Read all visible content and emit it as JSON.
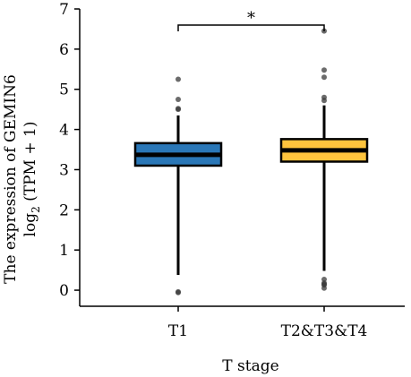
{
  "chart_data": {
    "type": "boxplot",
    "title": "",
    "xlabel": "T stage",
    "ylabel_line1": "The expression of GEMIN6",
    "ylabel_line2_main": "log",
    "ylabel_line2_sub": "2",
    "ylabel_line2_rest": " (TPM + 1)",
    "ylim": [
      -0.4,
      7
    ],
    "yticks": [
      0,
      1,
      2,
      3,
      4,
      5,
      6,
      7
    ],
    "grid": false,
    "categories": [
      "T1",
      "T2&T3&T4"
    ],
    "series": [
      {
        "color": "#2a77b7",
        "q1": 3.1,
        "median": 3.37,
        "q3": 3.66,
        "whisker_low": 0.38,
        "whisker_high": 4.35,
        "outliers": [
          -0.04,
          -0.06,
          4.5,
          4.52,
          4.75,
          5.25
        ]
      },
      {
        "color": "#ffc43d",
        "q1": 3.2,
        "median": 3.48,
        "q3": 3.76,
        "whisker_low": 0.48,
        "whisker_high": 4.6,
        "outliers": [
          0.05,
          0.13,
          0.15,
          0.18,
          0.27,
          4.72,
          4.8,
          5.3,
          5.48,
          6.45
        ]
      }
    ],
    "annotations": [
      {
        "text": "*",
        "between": [
          0,
          1
        ],
        "y": 6.6
      }
    ]
  }
}
